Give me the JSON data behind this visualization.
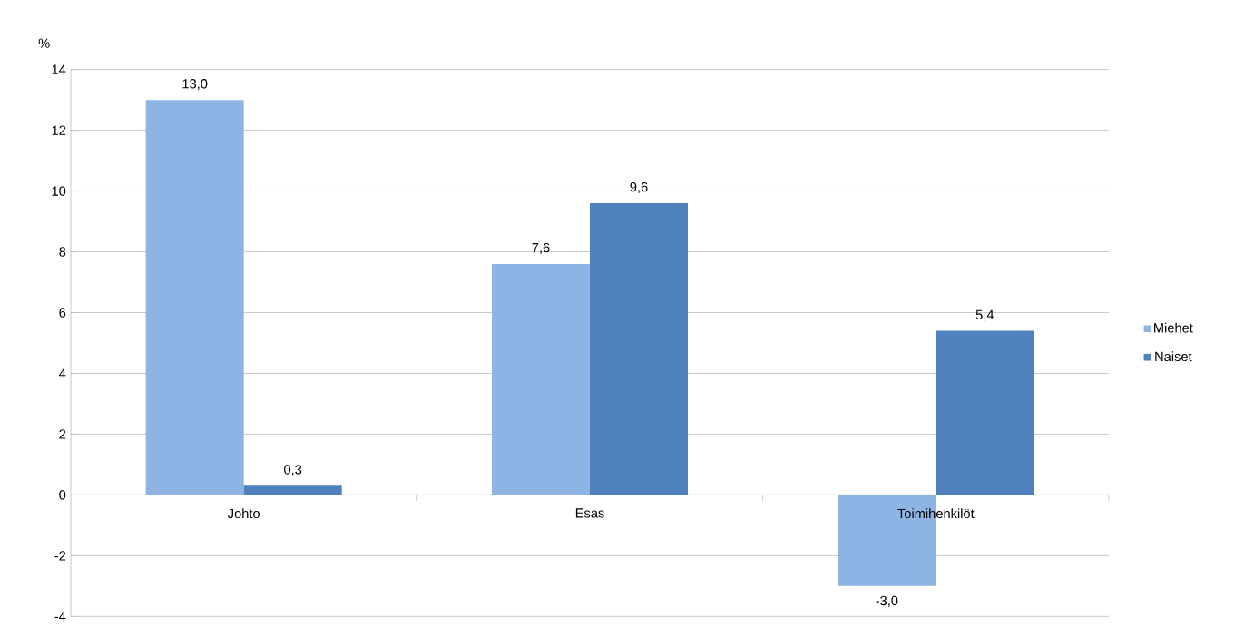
{
  "chart_data": {
    "type": "bar",
    "ylabel": "%",
    "categories": [
      "Johto",
      "Esas",
      "Toimihenkilöt"
    ],
    "series": [
      {
        "name": "Miehet",
        "color": "#8eb4e3",
        "values": [
          13.0,
          7.6,
          -3.0
        ],
        "value_labels": [
          "13,0",
          "7,6",
          "-3,0"
        ]
      },
      {
        "name": "Naiset",
        "color": "#4f81bd",
        "values": [
          0.3,
          9.6,
          5.4
        ],
        "value_labels": [
          "0,3",
          "9,6",
          "5,4"
        ]
      }
    ],
    "ylim": [
      -4,
      14
    ],
    "yticks": [
      -4,
      -2,
      0,
      2,
      4,
      6,
      8,
      10,
      12,
      14
    ],
    "grid": "y",
    "legend": "right"
  }
}
